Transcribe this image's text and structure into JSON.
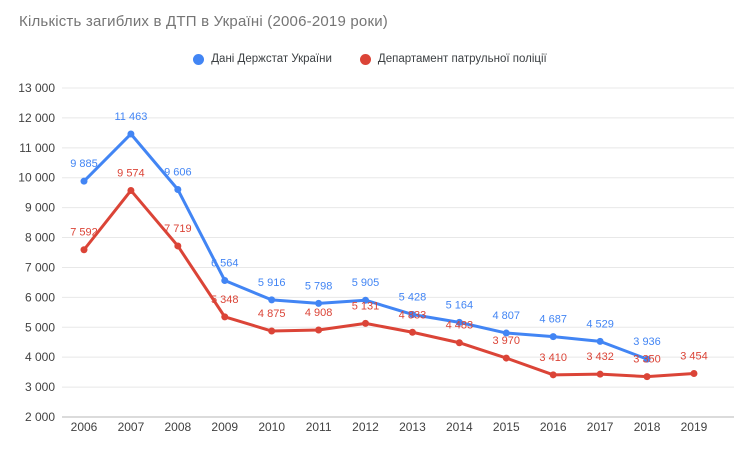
{
  "chart_data": {
    "type": "line",
    "title": "Кількість загиблих в ДТП в Україні (2006-2019 роки)",
    "categories": [
      "2006",
      "2007",
      "2008",
      "2009",
      "2010",
      "2011",
      "2012",
      "2013",
      "2014",
      "2015",
      "2016",
      "2017",
      "2018",
      "2019"
    ],
    "y_ticks": [
      "13 000",
      "12 000",
      "11 000",
      "10 000",
      "9 000",
      "8 000",
      "7 000",
      "6 000",
      "5 000",
      "4 000",
      "3 000",
      "2 000"
    ],
    "ylim": [
      2000,
      13000
    ],
    "grid": true,
    "legend_position": "top-center",
    "series": [
      {
        "name": "Дані Держстат України",
        "color": "#4285f4",
        "values": [
          9885,
          11463,
          9606,
          6564,
          5916,
          5798,
          5905,
          5428,
          5164,
          4807,
          4687,
          4529,
          3936,
          null
        ],
        "labels": [
          "9 885",
          "11 463",
          "9 606",
          "6 564",
          "5 916",
          "5 798",
          "5 905",
          "5 428",
          "5 164",
          "4 807",
          "4 687",
          "4 529",
          "3 936",
          ""
        ]
      },
      {
        "name": "Департамент патрульної поліції",
        "color": "#db4437",
        "values": [
          7592,
          9574,
          7719,
          5348,
          4875,
          4908,
          5131,
          4833,
          4483,
          3970,
          3410,
          3432,
          3350,
          3454
        ],
        "labels": [
          "7 592",
          "9 574",
          "7 719",
          "5 348",
          "4 875",
          "4 908",
          "5 131",
          "4 833",
          "4 483",
          "3 970",
          "3 410",
          "3 432",
          "3 350",
          "3 454"
        ]
      }
    ],
    "colors": {
      "grid": "#e8e8e8",
      "baseline": "#b7b7b7",
      "tick_text": "#424242",
      "title_text": "#757575",
      "legend_text": "#3c4043",
      "background": "#ffffff"
    }
  }
}
